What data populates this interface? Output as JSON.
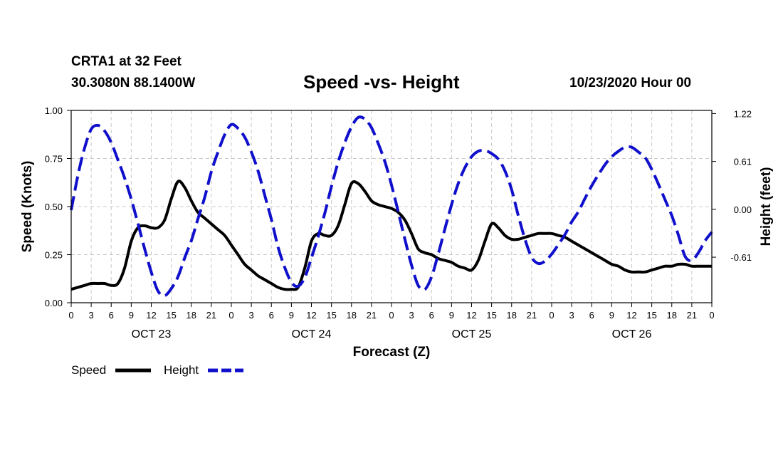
{
  "header": {
    "station": "CRTA1 at 32 Feet",
    "coords": "30.3080N 88.1400W",
    "title": "Speed -vs- Height",
    "timestamp": "10/23/2020 Hour 00"
  },
  "colors": {
    "speed": "#000000",
    "height": "#1010cc",
    "grid": "#c8c8c8"
  },
  "chart_data": {
    "type": "line",
    "title": "Speed -vs- Height",
    "xlabel": "Forecast (Z)",
    "ylabel": "Speed (Knots)",
    "y2label": "Height (feet)",
    "xlim": [
      0,
      96
    ],
    "ylim": [
      0,
      1.0
    ],
    "y2lim": [
      -1.19,
      1.26
    ],
    "grid": true,
    "legend_position": "bottom-left",
    "x_tick_labels": [
      "0",
      "3",
      "6",
      "9",
      "12",
      "15",
      "18",
      "21",
      "0",
      "3",
      "6",
      "9",
      "12",
      "15",
      "18",
      "21",
      "0",
      "3",
      "6",
      "9",
      "12",
      "15",
      "18",
      "21",
      "0",
      "3",
      "6",
      "9",
      "12",
      "15",
      "18",
      "21",
      "0"
    ],
    "y_tick_labels": [
      "0.00",
      "0.25",
      "0.50",
      "0.75",
      "1.00"
    ],
    "y2_tick_labels": [
      "-0.61",
      "0.00",
      "0.61",
      "1.22"
    ],
    "day_labels": [
      "OCT 23",
      "OCT 24",
      "OCT 25",
      "OCT 26"
    ],
    "series": [
      {
        "name": "Speed",
        "axis": "left",
        "style": "solid",
        "x": [
          0,
          1,
          2,
          3,
          4,
          5,
          6,
          7,
          8,
          9,
          10,
          11,
          12,
          13,
          14,
          15,
          16,
          17,
          18,
          19,
          20,
          21,
          22,
          23,
          24,
          25,
          26,
          27,
          28,
          29,
          30,
          31,
          32,
          33,
          34,
          35,
          36,
          37,
          38,
          39,
          40,
          41,
          42,
          43,
          44,
          45,
          46,
          47,
          48,
          49,
          50,
          51,
          52,
          53,
          54,
          55,
          56,
          57,
          58,
          59,
          60,
          61,
          62,
          63,
          64,
          65,
          66,
          67,
          68,
          69,
          70,
          71,
          72,
          73,
          74,
          75,
          76,
          77,
          78,
          79,
          80,
          81,
          82,
          83,
          84,
          85,
          86,
          87,
          88,
          89,
          90,
          91,
          92,
          93,
          94,
          95,
          96
        ],
        "values": [
          0.07,
          0.08,
          0.09,
          0.1,
          0.1,
          0.1,
          0.09,
          0.1,
          0.18,
          0.32,
          0.39,
          0.4,
          0.39,
          0.39,
          0.43,
          0.54,
          0.63,
          0.6,
          0.53,
          0.47,
          0.44,
          0.41,
          0.38,
          0.35,
          0.3,
          0.25,
          0.2,
          0.17,
          0.14,
          0.12,
          0.1,
          0.08,
          0.07,
          0.07,
          0.08,
          0.18,
          0.32,
          0.36,
          0.35,
          0.35,
          0.4,
          0.51,
          0.62,
          0.62,
          0.58,
          0.53,
          0.51,
          0.5,
          0.49,
          0.47,
          0.43,
          0.36,
          0.28,
          0.26,
          0.25,
          0.23,
          0.22,
          0.21,
          0.19,
          0.18,
          0.17,
          0.22,
          0.32,
          0.41,
          0.39,
          0.35,
          0.33,
          0.33,
          0.34,
          0.35,
          0.36,
          0.36,
          0.36,
          0.35,
          0.34,
          0.32,
          0.3,
          0.28,
          0.26,
          0.24,
          0.22,
          0.2,
          0.19,
          0.17,
          0.16,
          0.16,
          0.16,
          0.17,
          0.18,
          0.19,
          0.19,
          0.2,
          0.2,
          0.19,
          0.19,
          0.19,
          0.19
        ]
      },
      {
        "name": "Height",
        "axis": "right",
        "style": "dashed",
        "x": [
          0,
          1,
          2,
          3,
          4,
          5,
          6,
          7,
          8,
          9,
          10,
          11,
          12,
          13,
          14,
          15,
          16,
          17,
          18,
          19,
          20,
          21,
          22,
          23,
          24,
          25,
          26,
          27,
          28,
          29,
          30,
          31,
          32,
          33,
          34,
          35,
          36,
          37,
          38,
          39,
          40,
          41,
          42,
          43,
          44,
          45,
          46,
          47,
          48,
          49,
          50,
          51,
          52,
          53,
          54,
          55,
          56,
          57,
          58,
          59,
          60,
          61,
          62,
          63,
          64,
          65,
          66,
          67,
          68,
          69,
          70,
          71,
          72,
          73,
          74,
          75,
          76,
          77,
          78,
          79,
          80,
          81,
          82,
          83,
          84,
          85,
          86,
          87,
          88,
          89,
          90,
          91,
          92,
          93,
          94,
          95,
          96
        ],
        "values": [
          -0.01,
          0.43,
          0.78,
          1.02,
          1.07,
          1.0,
          0.85,
          0.63,
          0.4,
          0.13,
          -0.18,
          -0.5,
          -0.8,
          -1.04,
          -1.1,
          -1.01,
          -0.86,
          -0.62,
          -0.4,
          -0.12,
          0.15,
          0.48,
          0.73,
          0.95,
          1.08,
          1.03,
          0.92,
          0.73,
          0.49,
          0.18,
          -0.13,
          -0.48,
          -0.74,
          -0.93,
          -0.98,
          -0.87,
          -0.62,
          -0.35,
          -0.05,
          0.29,
          0.6,
          0.85,
          1.05,
          1.17,
          1.15,
          1.04,
          0.84,
          0.61,
          0.31,
          -0.03,
          -0.38,
          -0.71,
          -0.97,
          -1.02,
          -0.86,
          -0.57,
          -0.25,
          0.06,
          0.33,
          0.53,
          0.67,
          0.74,
          0.75,
          0.71,
          0.64,
          0.49,
          0.25,
          -0.08,
          -0.38,
          -0.61,
          -0.69,
          -0.66,
          -0.57,
          -0.45,
          -0.32,
          -0.16,
          -0.03,
          0.14,
          0.3,
          0.44,
          0.57,
          0.67,
          0.74,
          0.79,
          0.79,
          0.73,
          0.66,
          0.51,
          0.32,
          0.12,
          -0.08,
          -0.33,
          -0.6,
          -0.65,
          -0.55,
          -0.4,
          -0.29
        ]
      }
    ]
  }
}
